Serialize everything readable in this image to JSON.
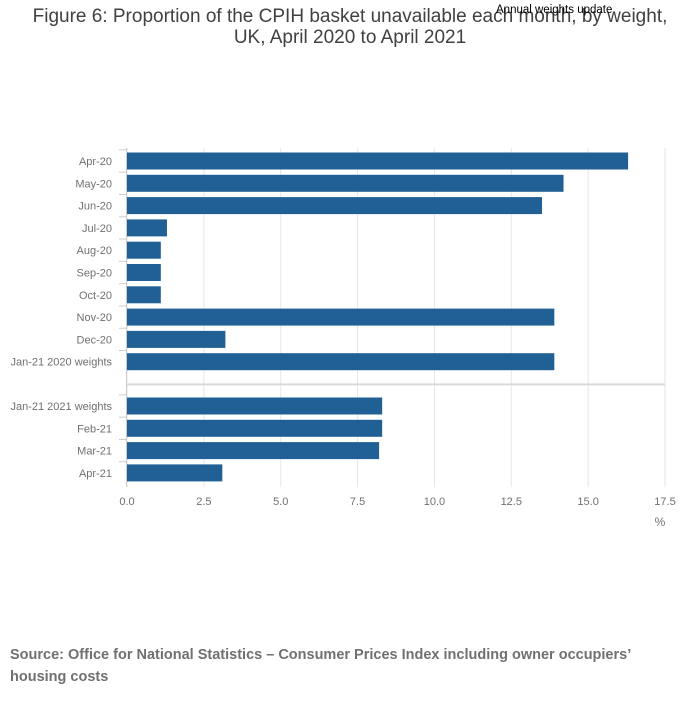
{
  "title": "Figure 6: Proportion of the CPIH basket unavailable each month, by weight, UK, April 2020 to April 2021",
  "annotation": "Annual weights update",
  "source": "Source: Office for National Statistics – Consumer Prices Index including owner occupiers’ housing costs",
  "colors": {
    "bar": "#206095",
    "axis_text": "#707071",
    "grid": "#e6e6e6",
    "separator": "#d9d9d9"
  },
  "chart_data": {
    "type": "bar",
    "orientation": "horizontal",
    "categories": [
      "Apr-20",
      "May-20",
      "Jun-20",
      "Jul-20",
      "Aug-20",
      "Sep-20",
      "Oct-20",
      "Nov-20",
      "Dec-20",
      "Jan-21 2020 weights",
      "Jan-21 2021 weights",
      "Feb-21",
      "Mar-21",
      "Apr-21"
    ],
    "values": [
      16.3,
      14.2,
      13.5,
      1.3,
      1.1,
      1.1,
      1.1,
      13.9,
      3.2,
      13.9,
      8.3,
      8.3,
      8.2,
      3.1
    ],
    "x_ticks": [
      "0.0",
      "2.5",
      "5.0",
      "7.5",
      "10.0",
      "12.5",
      "15.0",
      "17.5"
    ],
    "xlim": [
      0,
      17.5
    ],
    "xlabel": "%",
    "ylabel": "",
    "grid": true,
    "groups": [
      {
        "categories": [
          "Apr-20",
          "May-20",
          "Jun-20",
          "Jul-20",
          "Aug-20",
          "Sep-20",
          "Oct-20",
          "Nov-20",
          "Dec-20",
          "Jan-21 2020 weights"
        ]
      },
      {
        "categories": [
          "Jan-21 2021 weights",
          "Feb-21",
          "Mar-21",
          "Apr-21"
        ]
      }
    ]
  }
}
